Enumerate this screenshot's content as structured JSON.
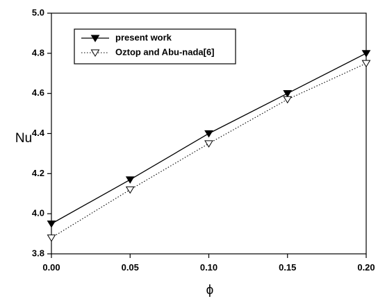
{
  "chart_data": {
    "type": "line",
    "xlabel": "ϕ",
    "ylabel": "Nu",
    "xlim": [
      0.0,
      0.2
    ],
    "ylim": [
      3.8,
      5.0
    ],
    "x_ticks": [
      "0.00",
      "0.05",
      "0.10",
      "0.15",
      "0.20"
    ],
    "y_ticks": [
      "3.8",
      "4.0",
      "4.2",
      "4.4",
      "4.6",
      "4.8",
      "5.0"
    ],
    "x": [
      0.0,
      0.05,
      0.1,
      0.15,
      0.2
    ],
    "grid": false,
    "legend_position": "top-left",
    "series": [
      {
        "name": "present work",
        "values": [
          3.95,
          4.17,
          4.4,
          4.6,
          4.8
        ],
        "line_style": "solid",
        "marker": "filled-down-triangle",
        "color": "#000000"
      },
      {
        "name": "Oztop and Abu-nada[6]",
        "values": [
          3.88,
          4.12,
          4.35,
          4.57,
          4.75
        ],
        "line_style": "dotted",
        "marker": "open-down-triangle",
        "color": "#000000"
      }
    ]
  }
}
